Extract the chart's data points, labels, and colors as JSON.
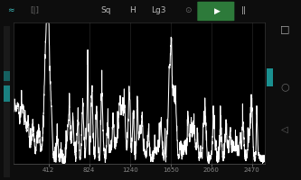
{
  "bg_color": "#0d0d0d",
  "toolbar_bg": "#1c1c1c",
  "plot_bg": "#000000",
  "line_color": "#ffffff",
  "grid_color": "#252525",
  "tick_color": "#888888",
  "tick_labels": [
    "412",
    "824",
    "1240",
    "1650",
    "2060",
    "2470"
  ],
  "tick_positions": [
    412,
    824,
    1240,
    1650,
    2060,
    2470
  ],
  "x_min": 60,
  "x_max": 2600,
  "y_min": 0,
  "y_max": 100,
  "teal_bar_color": "#1a8080",
  "teal_bar2_color": "#1a9090",
  "play_btn_bg": "#2d7a3a",
  "line_width": 0.75
}
